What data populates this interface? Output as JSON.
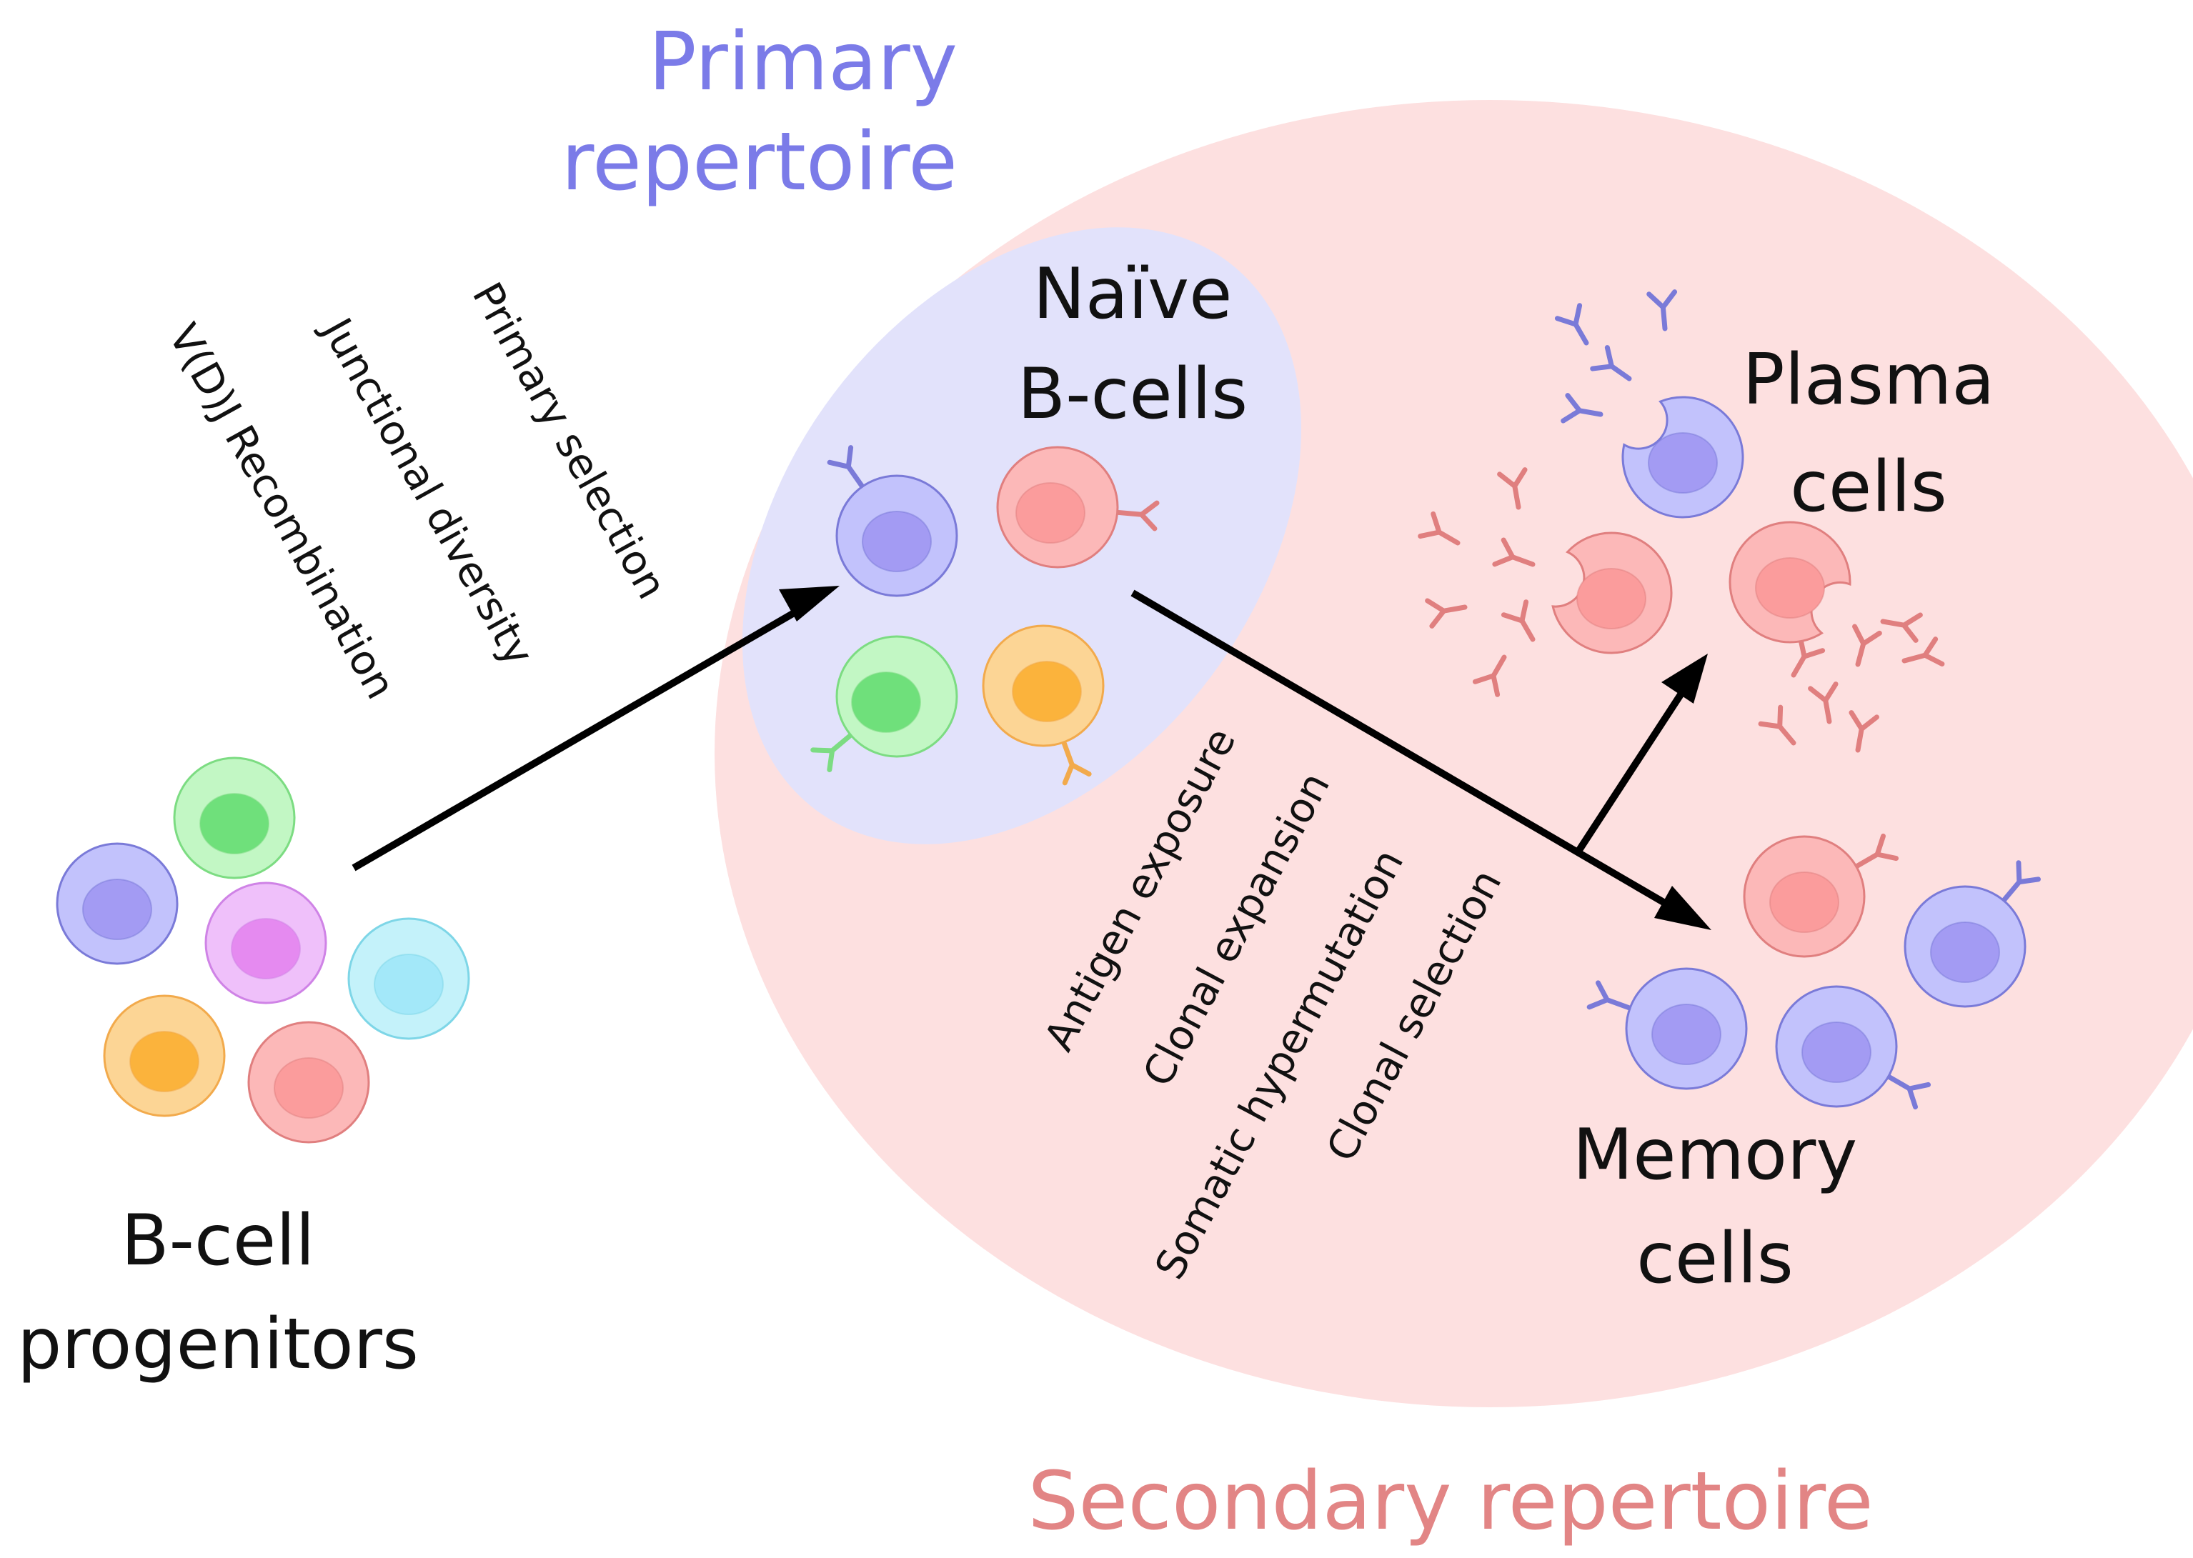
{
  "regions": {
    "primary": {
      "line1": "Primary",
      "line2": "repertoire",
      "color": "#7b7be8"
    },
    "secondary": {
      "label": "Secondary repertoire",
      "color": "#e28585"
    }
  },
  "populations": {
    "progenitors": {
      "line1": "B-cell",
      "line2": "progenitors"
    },
    "naive": {
      "line1": "Naïve",
      "line2": "B-cells"
    },
    "plasma": {
      "line1": "Plasma",
      "line2": "cells"
    },
    "memory": {
      "line1": "Memory",
      "line2": "cells"
    }
  },
  "primary_steps": [
    "Primary selection",
    "Junctional diversity",
    "V(D)J Recombination"
  ],
  "secondary_steps": [
    "Antigen exposure",
    "Clonal expansion",
    "Somatic hypermutation",
    "Clonal selection"
  ],
  "colors": {
    "secondary_bg": "#fde0e0",
    "primary_bg": "#e2e2fb",
    "arrow": "#000000"
  },
  "cell_colors": {
    "blue": {
      "fill": "#c2c2fc",
      "stroke": "#7a7ad8",
      "nucleus": "#a39bf3"
    },
    "red": {
      "fill": "#fcb8b8",
      "stroke": "#e07f7f",
      "nucleus": "#fb9c9c"
    },
    "green": {
      "fill": "#c2f7c4",
      "stroke": "#7cdc82",
      "nucleus": "#6fe07b"
    },
    "orange": {
      "fill": "#fcd595",
      "stroke": "#f2aa4c",
      "nucleus": "#fbb33c"
    },
    "purple": {
      "fill": "#efc0fa",
      "stroke": "#cf83e6",
      "nucleus": "#e58af0"
    },
    "cyan": {
      "fill": "#c4f2fa",
      "stroke": "#7ed6e7",
      "nucleus": "#a3e8f9"
    }
  }
}
